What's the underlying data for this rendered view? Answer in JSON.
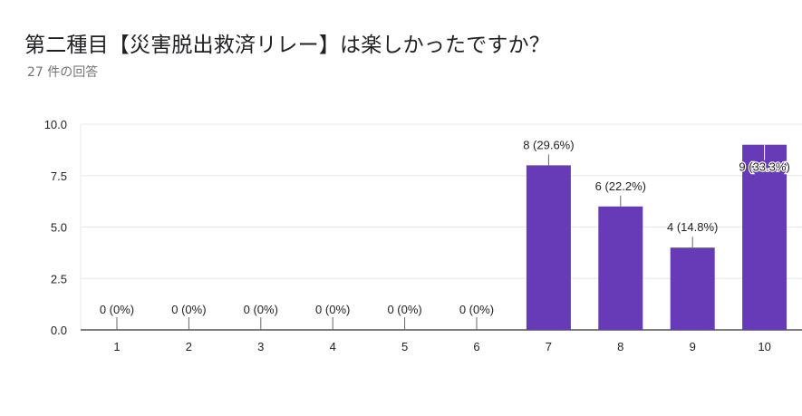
{
  "title": "第二種目【災害脱出救済リレー】は楽しかったですか？",
  "subtitle": "27 件の回答",
  "colors": {
    "bar": "#673ab7",
    "grid": "#e8e8e8",
    "axis": "#333333",
    "leader": "#666666"
  },
  "chart_data": {
    "type": "bar",
    "categories": [
      "1",
      "2",
      "3",
      "4",
      "5",
      "6",
      "7",
      "8",
      "9",
      "10"
    ],
    "values": [
      0,
      0,
      0,
      0,
      0,
      0,
      8,
      6,
      4,
      9
    ],
    "data_labels": [
      "0 (0%)",
      "0 (0%)",
      "0 (0%)",
      "0 (0%)",
      "0 (0%)",
      "0 (0%)",
      "8 (29.6%)",
      "6 (22.2%)",
      "4 (14.8%)",
      "9 (33.3%)"
    ],
    "ylim": [
      0,
      10
    ],
    "yticks": [
      "0.0",
      "2.5",
      "5.0",
      "7.5",
      "10.0"
    ],
    "ytick_values": [
      0,
      2.5,
      5,
      7.5,
      10
    ],
    "grid": true,
    "legend": "none",
    "xlabel": "",
    "ylabel": ""
  }
}
